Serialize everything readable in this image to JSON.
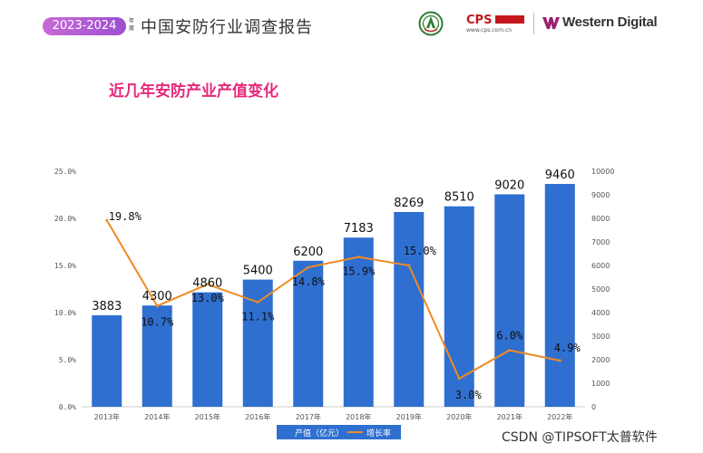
{
  "header": {
    "year_range": "2023-2024",
    "small_mark": "年度",
    "report_title": "中国安防行业调查报告",
    "cps_brand": "CPS",
    "cps_url": "www.cps.com.cn",
    "wd_brand": "Western Digital"
  },
  "colors": {
    "bar": "#2f6fd0",
    "line": "#f08a24",
    "title": "#e6287a",
    "axis_text": "#555555"
  },
  "chart_data": {
    "type": "bar",
    "title": "近几年安防产业产值变化",
    "categories": [
      "2013年",
      "2014年",
      "2015年",
      "2016年",
      "2017年",
      "2018年",
      "2019年",
      "2020年",
      "2021年",
      "2022年"
    ],
    "series": [
      {
        "name": "产值（亿元）",
        "type": "bar",
        "axis": "right",
        "values": [
          3883,
          4300,
          4860,
          5400,
          6200,
          7183,
          8269,
          8510,
          9020,
          9460
        ],
        "labels": [
          "3883",
          "4300",
          "4860",
          "5400",
          "6200",
          "7183",
          "8269",
          "8510",
          "9020",
          "9460"
        ]
      },
      {
        "name": "增长率",
        "type": "line",
        "axis": "left",
        "values": [
          19.8,
          10.7,
          13.0,
          11.1,
          14.8,
          15.9,
          15.0,
          3.0,
          6.0,
          4.9
        ],
        "labels": [
          "19.8%",
          "10.7%",
          "13.0%",
          "11.1%",
          "14.8%",
          "15.9%",
          "15.0%",
          "3.0%",
          "6.0%",
          "4.9%"
        ]
      }
    ],
    "y_left": {
      "min": 0,
      "max": 25,
      "ticks": [
        "0.0%",
        "5.0%",
        "10.0%",
        "15.0%",
        "20.0%",
        "25.0%"
      ]
    },
    "y_right": {
      "min": 0,
      "max": 10000,
      "ticks": [
        "0",
        "1000",
        "2000",
        "3000",
        "4000",
        "5000",
        "6000",
        "7000",
        "8000",
        "9000",
        "10000"
      ]
    },
    "legend_position": "bottom",
    "grid": false
  },
  "watermark": "CSDN @TIPSOFT太普软件"
}
